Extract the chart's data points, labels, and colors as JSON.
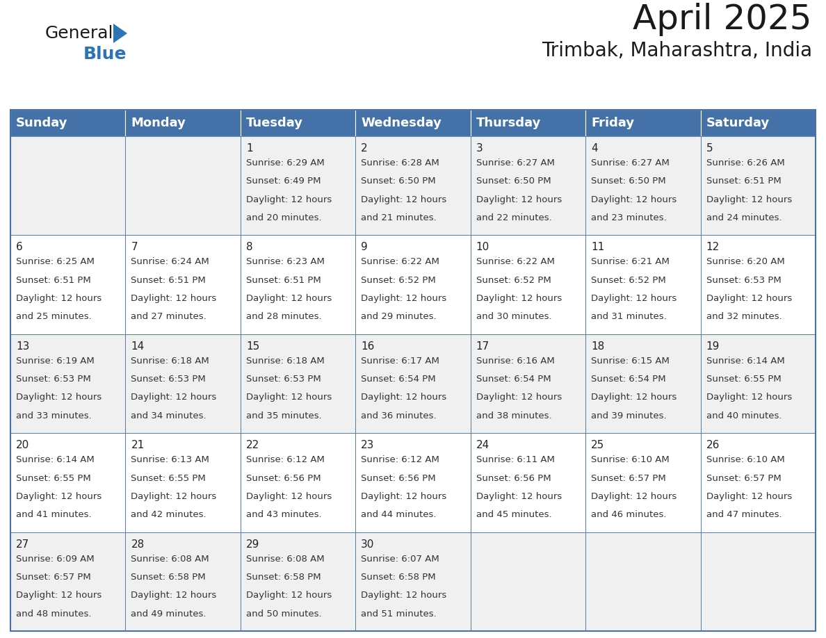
{
  "title": "April 2025",
  "subtitle": "Trimbak, Maharashtra, India",
  "header_color": "#4472A8",
  "header_text_color": "#FFFFFF",
  "cell_bg_even": "#F0F0F0",
  "cell_bg_odd": "#FFFFFF",
  "border_color": "#4472A8",
  "text_color": "#333333",
  "date_color": "#222222",
  "logo_general_color": "#1a1a1a",
  "logo_blue_color": "#2E74B5",
  "logo_triangle_color": "#2E74B5",
  "title_color": "#1a1a1a",
  "day_names": [
    "Sunday",
    "Monday",
    "Tuesday",
    "Wednesday",
    "Thursday",
    "Friday",
    "Saturday"
  ],
  "title_fontsize": 36,
  "subtitle_fontsize": 20,
  "day_header_fontsize": 13,
  "date_fontsize": 11,
  "cell_fontsize": 9.5,
  "days": [
    {
      "date": 1,
      "col": 2,
      "row": 0,
      "sunrise": "6:29 AM",
      "sunset": "6:49 PM",
      "daylight_hours": 12,
      "daylight_minutes": 20
    },
    {
      "date": 2,
      "col": 3,
      "row": 0,
      "sunrise": "6:28 AM",
      "sunset": "6:50 PM",
      "daylight_hours": 12,
      "daylight_minutes": 21
    },
    {
      "date": 3,
      "col": 4,
      "row": 0,
      "sunrise": "6:27 AM",
      "sunset": "6:50 PM",
      "daylight_hours": 12,
      "daylight_minutes": 22
    },
    {
      "date": 4,
      "col": 5,
      "row": 0,
      "sunrise": "6:27 AM",
      "sunset": "6:50 PM",
      "daylight_hours": 12,
      "daylight_minutes": 23
    },
    {
      "date": 5,
      "col": 6,
      "row": 0,
      "sunrise": "6:26 AM",
      "sunset": "6:51 PM",
      "daylight_hours": 12,
      "daylight_minutes": 24
    },
    {
      "date": 6,
      "col": 0,
      "row": 1,
      "sunrise": "6:25 AM",
      "sunset": "6:51 PM",
      "daylight_hours": 12,
      "daylight_minutes": 25
    },
    {
      "date": 7,
      "col": 1,
      "row": 1,
      "sunrise": "6:24 AM",
      "sunset": "6:51 PM",
      "daylight_hours": 12,
      "daylight_minutes": 27
    },
    {
      "date": 8,
      "col": 2,
      "row": 1,
      "sunrise": "6:23 AM",
      "sunset": "6:51 PM",
      "daylight_hours": 12,
      "daylight_minutes": 28
    },
    {
      "date": 9,
      "col": 3,
      "row": 1,
      "sunrise": "6:22 AM",
      "sunset": "6:52 PM",
      "daylight_hours": 12,
      "daylight_minutes": 29
    },
    {
      "date": 10,
      "col": 4,
      "row": 1,
      "sunrise": "6:22 AM",
      "sunset": "6:52 PM",
      "daylight_hours": 12,
      "daylight_minutes": 30
    },
    {
      "date": 11,
      "col": 5,
      "row": 1,
      "sunrise": "6:21 AM",
      "sunset": "6:52 PM",
      "daylight_hours": 12,
      "daylight_minutes": 31
    },
    {
      "date": 12,
      "col": 6,
      "row": 1,
      "sunrise": "6:20 AM",
      "sunset": "6:53 PM",
      "daylight_hours": 12,
      "daylight_minutes": 32
    },
    {
      "date": 13,
      "col": 0,
      "row": 2,
      "sunrise": "6:19 AM",
      "sunset": "6:53 PM",
      "daylight_hours": 12,
      "daylight_minutes": 33
    },
    {
      "date": 14,
      "col": 1,
      "row": 2,
      "sunrise": "6:18 AM",
      "sunset": "6:53 PM",
      "daylight_hours": 12,
      "daylight_minutes": 34
    },
    {
      "date": 15,
      "col": 2,
      "row": 2,
      "sunrise": "6:18 AM",
      "sunset": "6:53 PM",
      "daylight_hours": 12,
      "daylight_minutes": 35
    },
    {
      "date": 16,
      "col": 3,
      "row": 2,
      "sunrise": "6:17 AM",
      "sunset": "6:54 PM",
      "daylight_hours": 12,
      "daylight_minutes": 36
    },
    {
      "date": 17,
      "col": 4,
      "row": 2,
      "sunrise": "6:16 AM",
      "sunset": "6:54 PM",
      "daylight_hours": 12,
      "daylight_minutes": 38
    },
    {
      "date": 18,
      "col": 5,
      "row": 2,
      "sunrise": "6:15 AM",
      "sunset": "6:54 PM",
      "daylight_hours": 12,
      "daylight_minutes": 39
    },
    {
      "date": 19,
      "col": 6,
      "row": 2,
      "sunrise": "6:14 AM",
      "sunset": "6:55 PM",
      "daylight_hours": 12,
      "daylight_minutes": 40
    },
    {
      "date": 20,
      "col": 0,
      "row": 3,
      "sunrise": "6:14 AM",
      "sunset": "6:55 PM",
      "daylight_hours": 12,
      "daylight_minutes": 41
    },
    {
      "date": 21,
      "col": 1,
      "row": 3,
      "sunrise": "6:13 AM",
      "sunset": "6:55 PM",
      "daylight_hours": 12,
      "daylight_minutes": 42
    },
    {
      "date": 22,
      "col": 2,
      "row": 3,
      "sunrise": "6:12 AM",
      "sunset": "6:56 PM",
      "daylight_hours": 12,
      "daylight_minutes": 43
    },
    {
      "date": 23,
      "col": 3,
      "row": 3,
      "sunrise": "6:12 AM",
      "sunset": "6:56 PM",
      "daylight_hours": 12,
      "daylight_minutes": 44
    },
    {
      "date": 24,
      "col": 4,
      "row": 3,
      "sunrise": "6:11 AM",
      "sunset": "6:56 PM",
      "daylight_hours": 12,
      "daylight_minutes": 45
    },
    {
      "date": 25,
      "col": 5,
      "row": 3,
      "sunrise": "6:10 AM",
      "sunset": "6:57 PM",
      "daylight_hours": 12,
      "daylight_minutes": 46
    },
    {
      "date": 26,
      "col": 6,
      "row": 3,
      "sunrise": "6:10 AM",
      "sunset": "6:57 PM",
      "daylight_hours": 12,
      "daylight_minutes": 47
    },
    {
      "date": 27,
      "col": 0,
      "row": 4,
      "sunrise": "6:09 AM",
      "sunset": "6:57 PM",
      "daylight_hours": 12,
      "daylight_minutes": 48
    },
    {
      "date": 28,
      "col": 1,
      "row": 4,
      "sunrise": "6:08 AM",
      "sunset": "6:58 PM",
      "daylight_hours": 12,
      "daylight_minutes": 49
    },
    {
      "date": 29,
      "col": 2,
      "row": 4,
      "sunrise": "6:08 AM",
      "sunset": "6:58 PM",
      "daylight_hours": 12,
      "daylight_minutes": 50
    },
    {
      "date": 30,
      "col": 3,
      "row": 4,
      "sunrise": "6:07 AM",
      "sunset": "6:58 PM",
      "daylight_hours": 12,
      "daylight_minutes": 51
    }
  ]
}
